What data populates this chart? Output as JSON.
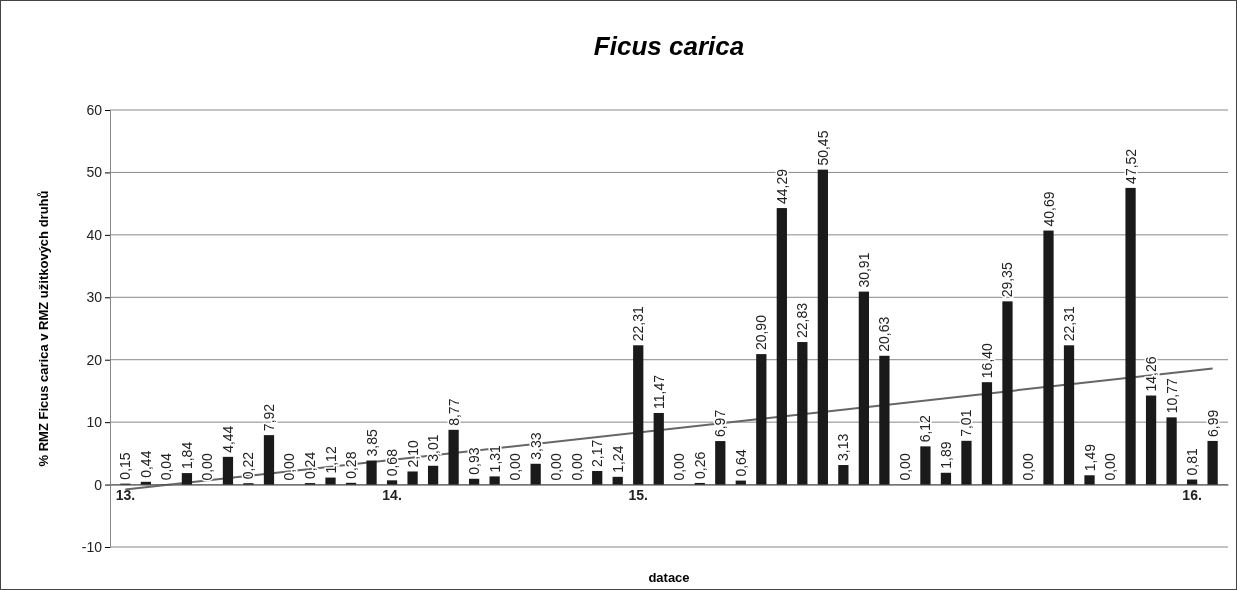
{
  "chart_data": {
    "type": "bar",
    "title": "Ficus carica",
    "xlabel": "datace",
    "ylabel": "% RMZ Ficus carica v RMZ užitkových druhů",
    "categories": [
      "13.",
      null,
      null,
      null,
      null,
      null,
      null,
      null,
      null,
      null,
      null,
      null,
      null,
      "14.",
      null,
      null,
      null,
      null,
      null,
      null,
      null,
      null,
      null,
      null,
      null,
      "15.",
      null,
      null,
      null,
      null,
      null,
      null,
      null,
      null,
      null,
      null,
      null,
      null,
      null,
      null,
      null,
      null,
      null,
      null,
      null,
      null,
      null,
      null,
      null,
      null,
      null,
      null,
      "16.",
      null
    ],
    "series": [
      {
        "color": "#1a1a1a",
        "values": [
          0.15,
          0.44,
          0.04,
          1.84,
          0,
          4.44,
          0.22,
          7.92,
          0,
          0.24,
          1.12,
          0.28,
          3.85,
          0.68,
          2.1,
          3.01,
          8.77,
          0.93,
          1.31,
          0,
          3.33,
          0,
          0,
          2.17,
          1.24,
          22.31,
          11.47,
          0,
          0.26,
          6.97,
          0.64,
          20.9,
          44.29,
          22.83,
          50.45,
          3.13,
          30.91,
          20.63,
          0,
          6.12,
          1.89,
          7.01,
          16.4,
          29.35,
          0,
          40.69,
          22.31,
          1.49,
          0,
          47.52,
          14.26,
          10.77,
          0.81,
          6.99
        ],
        "value_labels": [
          "0,15",
          "0,44",
          "0,04",
          "1,84",
          "0,00",
          "4,44",
          "0,22",
          "7,92",
          "0,00",
          "0,24",
          "1,12",
          "0,28",
          "3,85",
          "0,68",
          "2,10",
          "3,01",
          "8,77",
          "0,93",
          "1,31",
          "0,00",
          "3,33",
          "0,00",
          "0,00",
          "2,17",
          "1,24",
          "22,31",
          "11,47",
          "0,00",
          "0,26",
          "6,97",
          "0,64",
          "20,90",
          "44,29",
          "22,83",
          "50,45",
          "3,13",
          "30,91",
          "20,63",
          "0,00",
          "6,12",
          "1,89",
          "7,01",
          "16,40",
          "29,35",
          "0,00",
          "40,69",
          "22,31",
          "1,49",
          "0,00",
          "47,52",
          "14,26",
          "10,77",
          "0,81",
          "6,99"
        ]
      },
      {
        "type": "line",
        "color": "#666666",
        "values": [
          -0.8,
          null,
          null,
          null,
          null,
          null,
          null,
          null,
          null,
          null,
          null,
          null,
          null,
          null,
          null,
          null,
          null,
          null,
          null,
          null,
          null,
          null,
          null,
          null,
          null,
          null,
          null,
          null,
          null,
          null,
          null,
          null,
          null,
          null,
          null,
          null,
          null,
          null,
          null,
          null,
          null,
          null,
          null,
          null,
          null,
          null,
          null,
          null,
          null,
          null,
          null,
          null,
          null,
          18.6
        ]
      }
    ],
    "ylim": [
      -10,
      60
    ],
    "yticks": [
      -10,
      0,
      10,
      20,
      30,
      40,
      50,
      60
    ],
    "grid": "y"
  }
}
